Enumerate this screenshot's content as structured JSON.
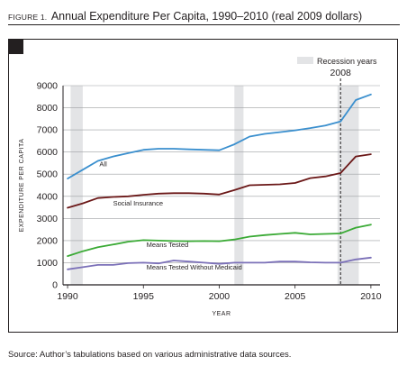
{
  "figure": {
    "label": "FIGURE 1.",
    "title": "Annual Expenditure Per Capita, 1990–2010 (real 2009 dollars)",
    "source": "Source: Author’s tabulations based on various administrative data sources."
  },
  "chart_data": {
    "type": "line",
    "xlabel": "YEAR",
    "ylabel": "EXPENDITURE PER CAPITA",
    "xlim": [
      1989.7,
      2010.6
    ],
    "ylim": [
      0,
      9000
    ],
    "xticks": [
      1990,
      1995,
      2000,
      2005,
      2010
    ],
    "yticks": [
      0,
      1000,
      2000,
      3000,
      4000,
      5000,
      6000,
      7000,
      8000,
      9000
    ],
    "grid": true,
    "legend": {
      "label": "Recession years",
      "position": "top-right"
    },
    "recessions": [
      [
        1990.2,
        1991.0
      ],
      [
        2001.0,
        2001.6
      ],
      [
        2007.8,
        2009.2
      ]
    ],
    "marker": {
      "x": 2008,
      "label": "2008"
    },
    "series": [
      {
        "name": "All",
        "color": "#3a8fce",
        "x": [
          1990,
          1991,
          1992,
          1993,
          1994,
          1995,
          1996,
          1997,
          1998,
          1999,
          2000,
          2001,
          2002,
          2003,
          2004,
          2005,
          2006,
          2007,
          2008,
          2009,
          2010
        ],
        "values": [
          4800,
          5200,
          5600,
          5800,
          5950,
          6100,
          6150,
          6150,
          6120,
          6100,
          6080,
          6350,
          6700,
          6820,
          6900,
          6980,
          7080,
          7200,
          7380,
          8350,
          8600
        ]
      },
      {
        "name": "Social Insurance",
        "color": "#6b1818",
        "x": [
          1990,
          1991,
          1992,
          1993,
          1994,
          1995,
          1996,
          1997,
          1998,
          1999,
          2000,
          2001,
          2002,
          2003,
          2004,
          2005,
          2006,
          2007,
          2008,
          2009,
          2010
        ],
        "values": [
          3480,
          3680,
          3920,
          3970,
          4000,
          4070,
          4120,
          4140,
          4140,
          4120,
          4080,
          4280,
          4500,
          4520,
          4540,
          4600,
          4820,
          4900,
          5050,
          5800,
          5900
        ]
      },
      {
        "name": "Means Tested",
        "color": "#3aaa35",
        "x": [
          1990,
          1991,
          1992,
          1993,
          1994,
          1995,
          1996,
          1997,
          1998,
          1999,
          2000,
          2001,
          2002,
          2003,
          2004,
          2005,
          2006,
          2007,
          2008,
          2009,
          2010
        ],
        "values": [
          1300,
          1520,
          1700,
          1820,
          1950,
          2020,
          2000,
          1980,
          1970,
          1980,
          1970,
          2050,
          2180,
          2250,
          2300,
          2350,
          2280,
          2300,
          2320,
          2580,
          2720
        ]
      },
      {
        "name": "Means Tested Without Medicaid",
        "color": "#7b70b8",
        "x": [
          1990,
          1991,
          1992,
          1993,
          1994,
          1995,
          1996,
          1997,
          1998,
          1999,
          2000,
          2001,
          2002,
          2003,
          2004,
          2005,
          2006,
          2007,
          2008,
          2009,
          2010
        ],
        "values": [
          700,
          800,
          900,
          900,
          980,
          1000,
          970,
          1100,
          1050,
          1000,
          950,
          1000,
          1000,
          1000,
          1050,
          1050,
          1020,
          1000,
          1000,
          1150,
          1230
        ]
      }
    ],
    "annotations": [
      {
        "text": "All",
        "x": 1992.1,
        "y": 5350
      },
      {
        "text": "Social Insurance",
        "x": 1993.0,
        "y": 3580
      },
      {
        "text": "Means Tested",
        "x": 1995.2,
        "y": 1720
      },
      {
        "text": "Means Tested Without Medicaid",
        "x": 1995.2,
        "y": 700
      }
    ]
  }
}
